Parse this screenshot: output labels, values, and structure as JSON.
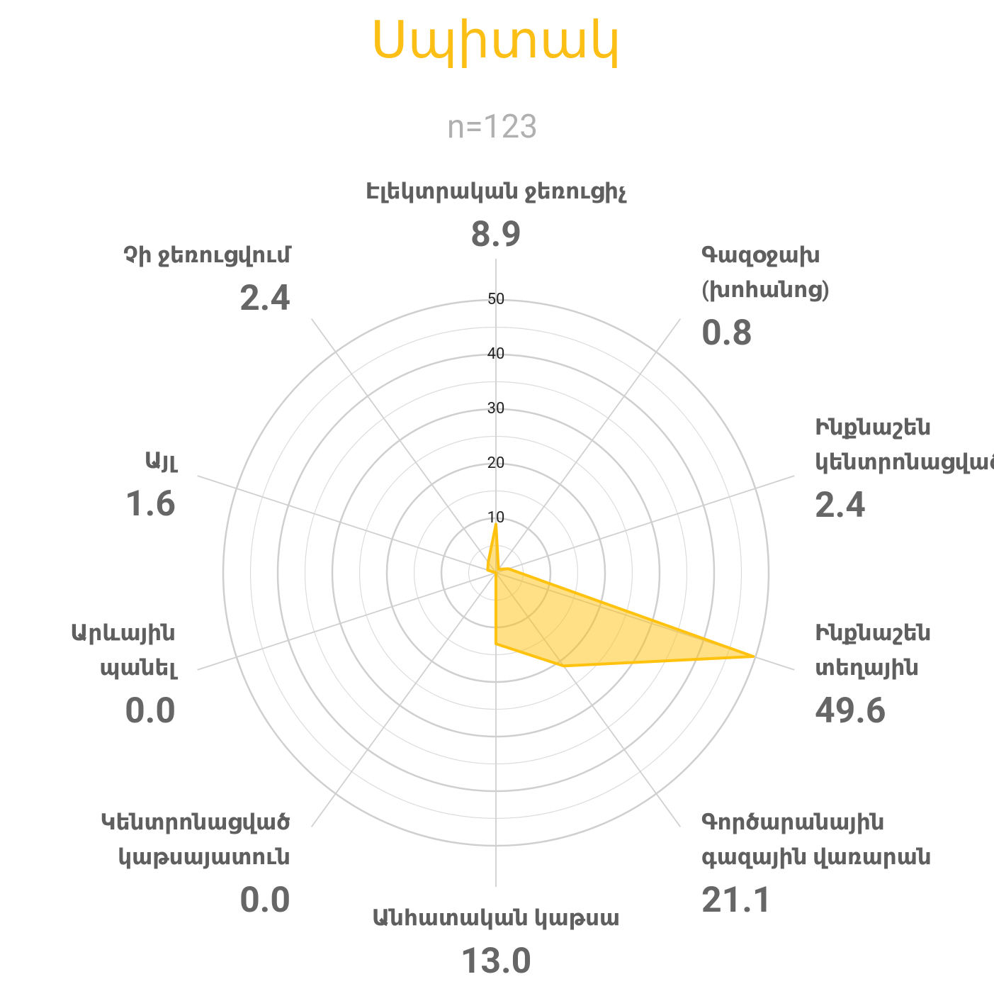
{
  "chart_data": {
    "type": "radar",
    "title": "Սպիտակ",
    "subtitle": "n=123",
    "categories": [
      [
        "Էլեկտրական ջեռուցիչ"
      ],
      [
        "Գազօջախ",
        "(խոհանոց)"
      ],
      [
        "Ինքնաշեն",
        "կենտրոնացված"
      ],
      [
        "Ինքնաշեն",
        "տեղային"
      ],
      [
        "Գործարանային",
        "գազային վառարան"
      ],
      [
        "Անհատական կաթսա"
      ],
      [
        "Կենտրոնացված",
        "կաթսայատուն"
      ],
      [
        "Արևային",
        "պանել"
      ],
      [
        "Այլ"
      ],
      [
        "Չի ջեռուցվում"
      ]
    ],
    "values": [
      8.9,
      0.8,
      2.4,
      49.6,
      21.1,
      13,
      0,
      0,
      1.6,
      2.4
    ],
    "value_labels": [
      "8.9",
      "0.8",
      "2.4",
      "49.6",
      "21.1",
      "13.0",
      "0.0",
      "0.0",
      "1.6",
      "2.4"
    ],
    "color": "#ffc20e",
    "ylim": [
      0,
      50
    ],
    "yticks": [
      10,
      20,
      30,
      40,
      50
    ],
    "grid": true
  }
}
